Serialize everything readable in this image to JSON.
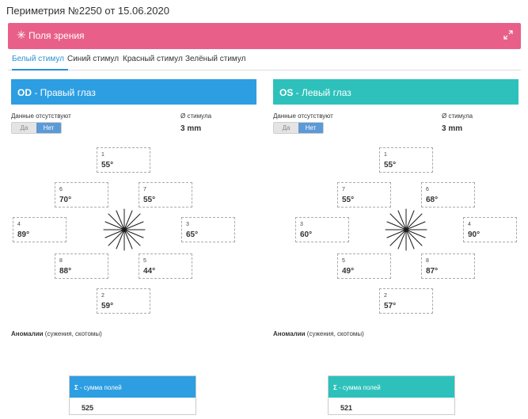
{
  "page": {
    "title": "Периметрия №2250 от 15.06.2020"
  },
  "panel": {
    "icon": "asterisk-icon",
    "title": "Поля зрения",
    "expand_icon": "expand-icon",
    "color": "#e8608a"
  },
  "tabs": [
    {
      "label": "Белый стимул",
      "active": true
    },
    {
      "label": "Синий стимул",
      "active": false
    },
    {
      "label": "Красный стимул",
      "active": false
    },
    {
      "label": "Зелёный стимул",
      "active": false
    }
  ],
  "common": {
    "no_data_label": "Данные отсутствуют",
    "toggle_yes": "Да",
    "toggle_no": "Нет",
    "stimulus_label": "Ø стимула",
    "anomaly_bold": "Аномалии",
    "anomaly_rest": " (сужения, скотомы)",
    "sum_sigma": "Σ",
    "sum_label": " - сумма полей"
  },
  "od": {
    "code": "OD",
    "name": " - Правый глаз",
    "color": "#2d9ee2",
    "stimulus_value": "3 mm",
    "fields": [
      {
        "num": "1",
        "deg": "55°"
      },
      {
        "num": "6",
        "deg": "70°"
      },
      {
        "num": "7",
        "deg": "55°"
      },
      {
        "num": "4",
        "deg": "89°"
      },
      {
        "num": "3",
        "deg": "65°"
      },
      {
        "num": "8",
        "deg": "88°"
      },
      {
        "num": "5",
        "deg": "44°"
      },
      {
        "num": "2",
        "deg": "59°"
      }
    ],
    "sum": "525"
  },
  "os": {
    "code": "OS",
    "name": " - Левый глаз",
    "color": "#2ec1bb",
    "stimulus_value": "3 mm",
    "fields": [
      {
        "num": "1",
        "deg": "55°"
      },
      {
        "num": "7",
        "deg": "55°"
      },
      {
        "num": "6",
        "deg": "68°"
      },
      {
        "num": "3",
        "deg": "60°"
      },
      {
        "num": "4",
        "deg": "90°"
      },
      {
        "num": "5",
        "deg": "49°"
      },
      {
        "num": "8",
        "deg": "87°"
      },
      {
        "num": "2",
        "deg": "57°"
      }
    ],
    "sum": "521"
  }
}
